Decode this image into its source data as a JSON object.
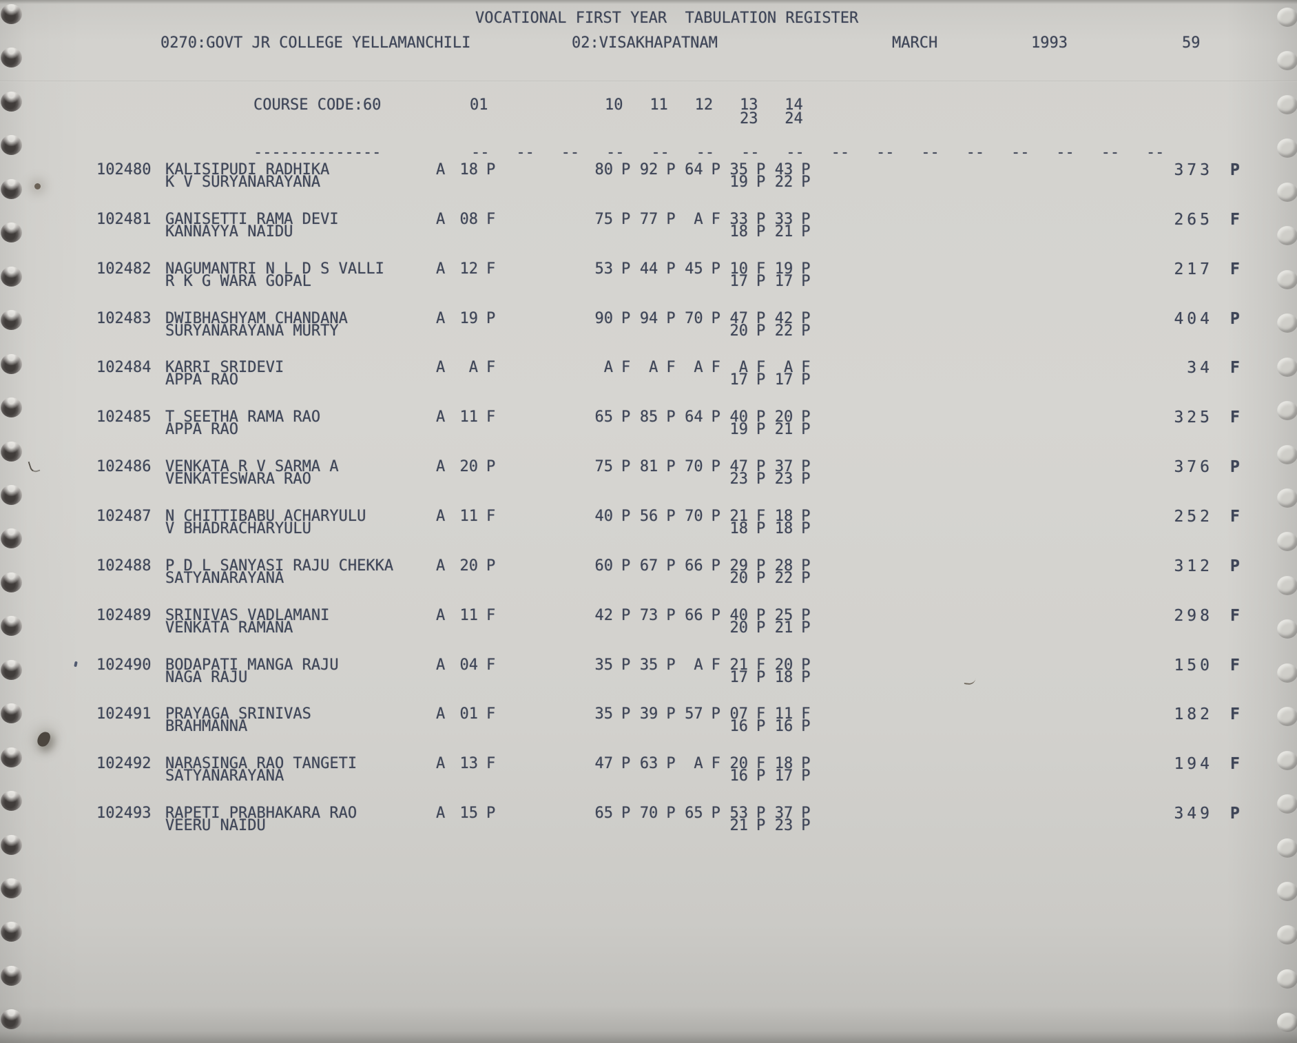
{
  "document": {
    "title": "VOCATIONAL FIRST YEAR  TABULATION REGISTER",
    "college": "0270:GOVT JR COLLEGE YELLAMANCHILI",
    "district": "02:VISAKHAPATNAM",
    "month": "MARCH",
    "year": "1993",
    "page_number": "59",
    "course_code": "COURSE CODE:60",
    "separator": "--------------",
    "tick": "--",
    "tick_count": 16,
    "ink_color": "#3e4557",
    "paper_color": "#d3d2ce",
    "columns": [
      {
        "label": "01",
        "slot": 0,
        "line": 1
      },
      {
        "label": "10",
        "slot": 3,
        "line": 1
      },
      {
        "label": "11",
        "slot": 4,
        "line": 1
      },
      {
        "label": "12",
        "slot": 5,
        "line": 1
      },
      {
        "label": "13",
        "slot": 6,
        "line": 1
      },
      {
        "label": "14",
        "slot": 7,
        "line": 1
      },
      {
        "label": "23",
        "slot": 6,
        "line": 2
      },
      {
        "label": "24",
        "slot": 7,
        "line": 2
      }
    ]
  },
  "rows": [
    {
      "reg_no": "102480",
      "name": "KALISIPUDI RADHIKA",
      "father": "K V SURYANARAYANA",
      "attendance": "A",
      "col01": {
        "m": "18",
        "r": "P"
      },
      "marks_line1": [
        {
          "m": "80",
          "r": "P"
        },
        {
          "m": "92",
          "r": "P"
        },
        {
          "m": "64",
          "r": "P"
        },
        {
          "m": "35",
          "r": "P"
        },
        {
          "m": "43",
          "r": "P"
        }
      ],
      "marks_line2": [
        {
          "m": "19",
          "r": "P"
        },
        {
          "m": "22",
          "r": "P"
        }
      ],
      "total": "373",
      "result": "P"
    },
    {
      "reg_no": "102481",
      "name": "GANISETTI RAMA DEVI",
      "father": "KANNAYYA NAIDU",
      "attendance": "A",
      "col01": {
        "m": "08",
        "r": "F"
      },
      "marks_line1": [
        {
          "m": "75",
          "r": "P"
        },
        {
          "m": "77",
          "r": "P"
        },
        {
          "m": "A",
          "r": "F"
        },
        {
          "m": "33",
          "r": "P"
        },
        {
          "m": "33",
          "r": "P"
        }
      ],
      "marks_line2": [
        {
          "m": "18",
          "r": "P"
        },
        {
          "m": "21",
          "r": "P"
        }
      ],
      "total": "265",
      "result": "F"
    },
    {
      "reg_no": "102482",
      "name": "NAGUMANTRI N L D S VALLI",
      "father": "R K G WARA GOPAL",
      "attendance": "A",
      "col01": {
        "m": "12",
        "r": "F"
      },
      "marks_line1": [
        {
          "m": "53",
          "r": "P"
        },
        {
          "m": "44",
          "r": "P"
        },
        {
          "m": "45",
          "r": "P"
        },
        {
          "m": "10",
          "r": "F"
        },
        {
          "m": "19",
          "r": "P"
        }
      ],
      "marks_line2": [
        {
          "m": "17",
          "r": "P"
        },
        {
          "m": "17",
          "r": "P"
        }
      ],
      "total": "217",
      "result": "F"
    },
    {
      "reg_no": "102483",
      "name": "DWIBHASHYAM CHANDANA",
      "father": "SURYANARAYANA MURTY",
      "attendance": "A",
      "col01": {
        "m": "19",
        "r": "P"
      },
      "marks_line1": [
        {
          "m": "90",
          "r": "P"
        },
        {
          "m": "94",
          "r": "P"
        },
        {
          "m": "70",
          "r": "P"
        },
        {
          "m": "47",
          "r": "P"
        },
        {
          "m": "42",
          "r": "P"
        }
      ],
      "marks_line2": [
        {
          "m": "20",
          "r": "P"
        },
        {
          "m": "22",
          "r": "P"
        }
      ],
      "total": "404",
      "result": "P"
    },
    {
      "reg_no": "102484",
      "name": "KARRI SRIDEVI",
      "father": "APPA RAO",
      "attendance": "A",
      "col01": {
        "m": "A",
        "r": "F"
      },
      "marks_line1": [
        {
          "m": "A",
          "r": "F"
        },
        {
          "m": "A",
          "r": "F"
        },
        {
          "m": "A",
          "r": "F"
        },
        {
          "m": "A",
          "r": "F"
        },
        {
          "m": "A",
          "r": "F"
        }
      ],
      "marks_line2": [
        {
          "m": "17",
          "r": "P"
        },
        {
          "m": "17",
          "r": "P"
        }
      ],
      "total": "34",
      "result": "F"
    },
    {
      "reg_no": "102485",
      "name": "T SEETHA RAMA RAO",
      "father": "APPA RAO",
      "attendance": "A",
      "col01": {
        "m": "11",
        "r": "F"
      },
      "marks_line1": [
        {
          "m": "65",
          "r": "P"
        },
        {
          "m": "85",
          "r": "P"
        },
        {
          "m": "64",
          "r": "P"
        },
        {
          "m": "40",
          "r": "P"
        },
        {
          "m": "20",
          "r": "P"
        }
      ],
      "marks_line2": [
        {
          "m": "19",
          "r": "P"
        },
        {
          "m": "21",
          "r": "P"
        }
      ],
      "total": "325",
      "result": "F"
    },
    {
      "reg_no": "102486",
      "name": "VENKATA R V SARMA A",
      "father": "VENKATESWARA RAO",
      "attendance": "A",
      "col01": {
        "m": "20",
        "r": "P"
      },
      "marks_line1": [
        {
          "m": "75",
          "r": "P"
        },
        {
          "m": "81",
          "r": "P"
        },
        {
          "m": "70",
          "r": "P"
        },
        {
          "m": "47",
          "r": "P"
        },
        {
          "m": "37",
          "r": "P"
        }
      ],
      "marks_line2": [
        {
          "m": "23",
          "r": "P"
        },
        {
          "m": "23",
          "r": "P"
        }
      ],
      "total": "376",
      "result": "P"
    },
    {
      "reg_no": "102487",
      "name": "N CHITTIBABU ACHARYULU",
      "father": "V BHADRACHARYULU",
      "attendance": "A",
      "col01": {
        "m": "11",
        "r": "F"
      },
      "marks_line1": [
        {
          "m": "40",
          "r": "P"
        },
        {
          "m": "56",
          "r": "P"
        },
        {
          "m": "70",
          "r": "P"
        },
        {
          "m": "21",
          "r": "F"
        },
        {
          "m": "18",
          "r": "P"
        }
      ],
      "marks_line2": [
        {
          "m": "18",
          "r": "P"
        },
        {
          "m": "18",
          "r": "P"
        }
      ],
      "total": "252",
      "result": "F"
    },
    {
      "reg_no": "102488",
      "name": "P D L SANYASI RAJU CHEKKA",
      "father": "SATYANARAYANA",
      "attendance": "A",
      "col01": {
        "m": "20",
        "r": "P"
      },
      "marks_line1": [
        {
          "m": "60",
          "r": "P"
        },
        {
          "m": "67",
          "r": "P"
        },
        {
          "m": "66",
          "r": "P"
        },
        {
          "m": "29",
          "r": "P"
        },
        {
          "m": "28",
          "r": "P"
        }
      ],
      "marks_line2": [
        {
          "m": "20",
          "r": "P"
        },
        {
          "m": "22",
          "r": "P"
        }
      ],
      "total": "312",
      "result": "P"
    },
    {
      "reg_no": "102489",
      "name": "SRINIVAS VADLAMANI",
      "father": "VENKATA RAMANA",
      "attendance": "A",
      "col01": {
        "m": "11",
        "r": "F"
      },
      "marks_line1": [
        {
          "m": "42",
          "r": "P"
        },
        {
          "m": "73",
          "r": "P"
        },
        {
          "m": "66",
          "r": "P"
        },
        {
          "m": "40",
          "r": "P"
        },
        {
          "m": "25",
          "r": "P"
        }
      ],
      "marks_line2": [
        {
          "m": "20",
          "r": "P"
        },
        {
          "m": "21",
          "r": "P"
        }
      ],
      "total": "298",
      "result": "F"
    },
    {
      "reg_no": "102490",
      "name": "BODAPATI MANGA RAJU",
      "father": "NAGA RAJU",
      "attendance": "A",
      "col01": {
        "m": "04",
        "r": "F"
      },
      "marks_line1": [
        {
          "m": "35",
          "r": "P"
        },
        {
          "m": "35",
          "r": "P"
        },
        {
          "m": "A",
          "r": "F"
        },
        {
          "m": "21",
          "r": "F"
        },
        {
          "m": "20",
          "r": "P"
        }
      ],
      "marks_line2": [
        {
          "m": "17",
          "r": "P"
        },
        {
          "m": "18",
          "r": "P"
        }
      ],
      "total": "150",
      "result": "F"
    },
    {
      "reg_no": "102491",
      "name": "PRAYAGA SRINIVAS",
      "father": "BRAHMANNA",
      "attendance": "A",
      "col01": {
        "m": "01",
        "r": "F"
      },
      "marks_line1": [
        {
          "m": "35",
          "r": "P"
        },
        {
          "m": "39",
          "r": "P"
        },
        {
          "m": "57",
          "r": "P"
        },
        {
          "m": "07",
          "r": "F"
        },
        {
          "m": "11",
          "r": "F"
        }
      ],
      "marks_line2": [
        {
          "m": "16",
          "r": "P"
        },
        {
          "m": "16",
          "r": "P"
        }
      ],
      "total": "182",
      "result": "F"
    },
    {
      "reg_no": "102492",
      "name": "NARASINGA RAO TANGETI",
      "father": "SATYANARAYANA",
      "attendance": "A",
      "col01": {
        "m": "13",
        "r": "F"
      },
      "marks_line1": [
        {
          "m": "47",
          "r": "P"
        },
        {
          "m": "63",
          "r": "P"
        },
        {
          "m": "A",
          "r": "F"
        },
        {
          "m": "20",
          "r": "F"
        },
        {
          "m": "18",
          "r": "P"
        }
      ],
      "marks_line2": [
        {
          "m": "16",
          "r": "P"
        },
        {
          "m": "17",
          "r": "P"
        }
      ],
      "total": "194",
      "result": "F"
    },
    {
      "reg_no": "102493",
      "name": "RAPETI PRABHAKARA RAO",
      "father": "VEERU NAIDU",
      "attendance": "A",
      "col01": {
        "m": "15",
        "r": "P"
      },
      "marks_line1": [
        {
          "m": "65",
          "r": "P"
        },
        {
          "m": "70",
          "r": "P"
        },
        {
          "m": "65",
          "r": "P"
        },
        {
          "m": "53",
          "r": "P"
        },
        {
          "m": "37",
          "r": "P"
        }
      ],
      "marks_line2": [
        {
          "m": "21",
          "r": "P"
        },
        {
          "m": "23",
          "r": "P"
        }
      ],
      "total": "349",
      "result": "P"
    }
  ]
}
